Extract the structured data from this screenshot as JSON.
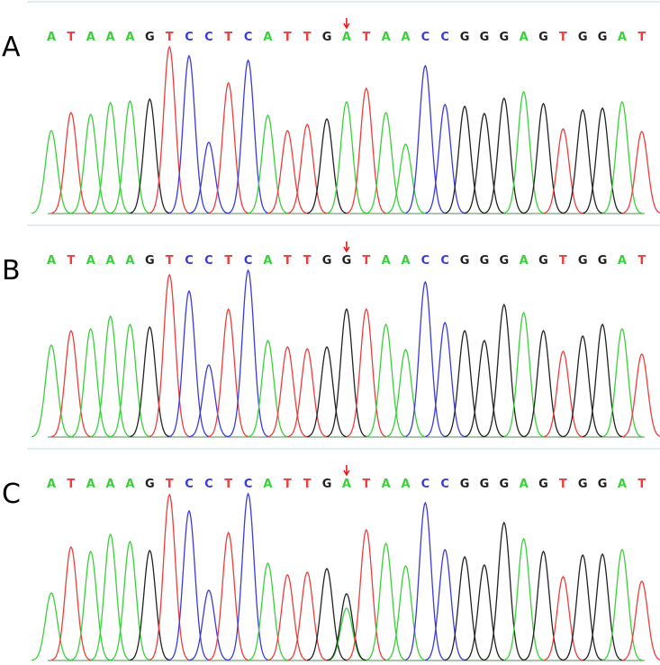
{
  "base_colors": {
    "A": "#3ad03a",
    "T": "#f03c3c",
    "C": "#3b3bdc",
    "G": "#222222"
  },
  "panels": [
    {
      "label": "A",
      "sequence": [
        "A",
        "T",
        "A",
        "A",
        "A",
        "G",
        "T",
        "C",
        "C",
        "T",
        "C",
        "A",
        "T",
        "T",
        "G",
        "A",
        "T",
        "A",
        "A",
        "C",
        "C",
        "G",
        "G",
        "G",
        "A",
        "G",
        "T",
        "G",
        "G",
        "A",
        "T"
      ],
      "peaks": [
        92,
        112,
        110,
        123,
        125,
        127,
        185,
        175,
        79,
        145,
        170,
        109,
        92,
        99,
        105,
        124,
        139,
        112,
        77,
        164,
        121,
        119,
        111,
        128,
        135,
        122,
        94,
        115,
        117,
        124,
        91
      ]
    },
    {
      "label": "B",
      "sequence": [
        "A",
        "T",
        "A",
        "A",
        "A",
        "G",
        "T",
        "C",
        "C",
        "T",
        "C",
        "A",
        "T",
        "T",
        "G",
        "G",
        "T",
        "A",
        "A",
        "C",
        "C",
        "G",
        "G",
        "G",
        "A",
        "G",
        "T",
        "G",
        "G",
        "A",
        "T"
      ],
      "peaks": [
        102,
        118,
        120,
        134,
        125,
        122,
        180,
        162,
        80,
        142,
        185,
        107,
        100,
        98,
        100,
        142,
        142,
        125,
        97,
        172,
        127,
        118,
        107,
        147,
        138,
        118,
        95,
        112,
        125,
        120,
        92
      ]
    },
    {
      "label": "C",
      "sequence": [
        "A",
        "T",
        "A",
        "A",
        "A",
        "G",
        "T",
        "C",
        "C",
        "T",
        "C",
        "A",
        "T",
        "T",
        "G",
        "A",
        "T",
        "A",
        "A",
        "C",
        "C",
        "G",
        "G",
        "G",
        "A",
        "G",
        "T",
        "G",
        "G",
        "A",
        "T"
      ],
      "peaks": [
        75,
        126,
        121,
        140,
        132,
        122,
        184,
        166,
        78,
        142,
        185,
        108,
        95,
        98,
        102,
        58,
        145,
        130,
        105,
        175,
        123,
        115,
        106,
        153,
        135,
        121,
        93,
        117,
        118,
        123,
        88
      ],
      "secondary": [
        null,
        null,
        null,
        null,
        null,
        null,
        null,
        null,
        null,
        null,
        null,
        null,
        null,
        null,
        null,
        74,
        null,
        null,
        null,
        null,
        null,
        null,
        null,
        null,
        null,
        null,
        null,
        null,
        null,
        null,
        null
      ],
      "secondary_color": "#222222"
    }
  ]
}
